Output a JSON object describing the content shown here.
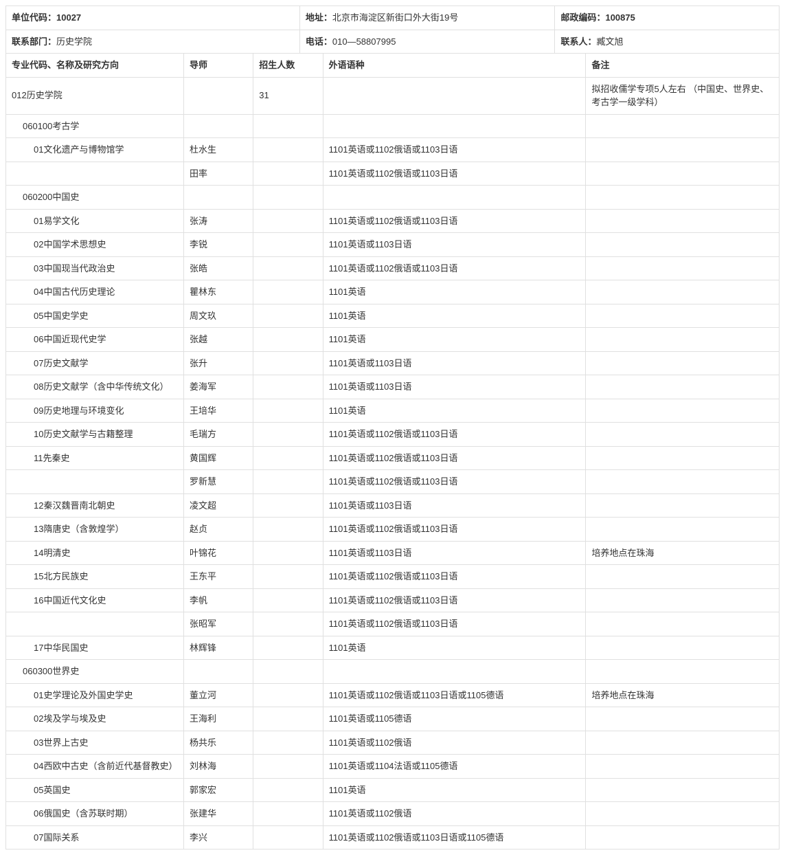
{
  "header": {
    "unit_code_label": "单位代码：",
    "unit_code": "10027",
    "address_label": "地址：",
    "address": "北京市海淀区新街口外大街19号",
    "postal_label": "邮政编码：",
    "postal": "100875",
    "dept_label": "联系部门：",
    "dept": "历史学院",
    "phone_label": "电话：",
    "phone": "010—58807995",
    "contact_label": "联系人：",
    "contact": "臧文旭"
  },
  "columns": {
    "c1": "专业代码、名称及研究方向",
    "c2": "导师",
    "c3": "招生人数",
    "c4": "外语语种",
    "c5": "备注"
  },
  "rows": [
    {
      "indent": 0,
      "name": "012历史学院",
      "advisor": "",
      "count": "31",
      "lang": "",
      "note": "拟招收儒学专项5人左右 （中国史、世界史、考古学一级学科）"
    },
    {
      "indent": 1,
      "name": "060100考古学",
      "advisor": "",
      "count": "",
      "lang": "",
      "note": ""
    },
    {
      "indent": 2,
      "name": "01文化遗产与博物馆学",
      "advisor": "杜水生",
      "count": "",
      "lang": "1101英语或1102俄语或1103日语",
      "note": ""
    },
    {
      "indent": 2,
      "name": "",
      "advisor": "田率",
      "count": "",
      "lang": "1101英语或1102俄语或1103日语",
      "note": ""
    },
    {
      "indent": 1,
      "name": "060200中国史",
      "advisor": "",
      "count": "",
      "lang": "",
      "note": ""
    },
    {
      "indent": 2,
      "name": "01易学文化",
      "advisor": "张涛",
      "count": "",
      "lang": "1101英语或1102俄语或1103日语",
      "note": ""
    },
    {
      "indent": 2,
      "name": "02中国学术思想史",
      "advisor": "李锐",
      "count": "",
      "lang": "1101英语或1103日语",
      "note": ""
    },
    {
      "indent": 2,
      "name": "03中国现当代政治史",
      "advisor": "张皓",
      "count": "",
      "lang": "1101英语或1102俄语或1103日语",
      "note": ""
    },
    {
      "indent": 2,
      "name": "04中国古代历史理论",
      "advisor": "瞿林东",
      "count": "",
      "lang": "1101英语",
      "note": ""
    },
    {
      "indent": 2,
      "name": "05中国史学史",
      "advisor": "周文玖",
      "count": "",
      "lang": "1101英语",
      "note": ""
    },
    {
      "indent": 2,
      "name": "06中国近现代史学",
      "advisor": "张越",
      "count": "",
      "lang": "1101英语",
      "note": ""
    },
    {
      "indent": 2,
      "name": "07历史文献学",
      "advisor": "张升",
      "count": "",
      "lang": "1101英语或1103日语",
      "note": ""
    },
    {
      "indent": 2,
      "name": "08历史文献学（含中华传统文化）",
      "advisor": "姜海军",
      "count": "",
      "lang": "1101英语或1103日语",
      "note": ""
    },
    {
      "indent": 2,
      "name": "09历史地理与环境变化",
      "advisor": "王培华",
      "count": "",
      "lang": "1101英语",
      "note": ""
    },
    {
      "indent": 2,
      "name": "10历史文献学与古籍整理",
      "advisor": "毛瑞方",
      "count": "",
      "lang": "1101英语或1102俄语或1103日语",
      "note": ""
    },
    {
      "indent": 2,
      "name": "11先秦史",
      "advisor": "黄国辉",
      "count": "",
      "lang": "1101英语或1102俄语或1103日语",
      "note": ""
    },
    {
      "indent": 2,
      "name": "",
      "advisor": "罗新慧",
      "count": "",
      "lang": "1101英语或1102俄语或1103日语",
      "note": ""
    },
    {
      "indent": 2,
      "name": "12秦汉魏晋南北朝史",
      "advisor": "凌文超",
      "count": "",
      "lang": "1101英语或1103日语",
      "note": ""
    },
    {
      "indent": 2,
      "name": "13隋唐史（含敦煌学）",
      "advisor": "赵贞",
      "count": "",
      "lang": "1101英语或1102俄语或1103日语",
      "note": ""
    },
    {
      "indent": 2,
      "name": "14明清史",
      "advisor": "叶锦花",
      "count": "",
      "lang": "1101英语或1103日语",
      "note": "培养地点在珠海"
    },
    {
      "indent": 2,
      "name": "15北方民族史",
      "advisor": "王东平",
      "count": "",
      "lang": "1101英语或1102俄语或1103日语",
      "note": ""
    },
    {
      "indent": 2,
      "name": "16中国近代文化史",
      "advisor": "李帆",
      "count": "",
      "lang": "1101英语或1102俄语或1103日语",
      "note": ""
    },
    {
      "indent": 2,
      "name": "",
      "advisor": "张昭军",
      "count": "",
      "lang": "1101英语或1102俄语或1103日语",
      "note": ""
    },
    {
      "indent": 2,
      "name": "17中华民国史",
      "advisor": "林辉锋",
      "count": "",
      "lang": "1101英语",
      "note": ""
    },
    {
      "indent": 1,
      "name": "060300世界史",
      "advisor": "",
      "count": "",
      "lang": "",
      "note": ""
    },
    {
      "indent": 2,
      "name": "01史学理论及外国史学史",
      "advisor": "董立河",
      "count": "",
      "lang": "1101英语或1102俄语或1103日语或1105德语",
      "note": "培养地点在珠海"
    },
    {
      "indent": 2,
      "name": "02埃及学与埃及史",
      "advisor": "王海利",
      "count": "",
      "lang": "1101英语或1105德语",
      "note": ""
    },
    {
      "indent": 2,
      "name": "03世界上古史",
      "advisor": "杨共乐",
      "count": "",
      "lang": "1101英语或1102俄语",
      "note": ""
    },
    {
      "indent": 2,
      "name": "04西欧中古史（含前近代基督教史）",
      "advisor": "刘林海",
      "count": "",
      "lang": "1101英语或1104法语或1105德语",
      "note": ""
    },
    {
      "indent": 2,
      "name": "05英国史",
      "advisor": "郭家宏",
      "count": "",
      "lang": "1101英语",
      "note": ""
    },
    {
      "indent": 2,
      "name": "06俄国史（含苏联时期）",
      "advisor": "张建华",
      "count": "",
      "lang": "1101英语或1102俄语",
      "note": ""
    },
    {
      "indent": 2,
      "name": "07国际关系",
      "advisor": "李兴",
      "count": "",
      "lang": "1101英语或1102俄语或1103日语或1105德语",
      "note": ""
    }
  ]
}
